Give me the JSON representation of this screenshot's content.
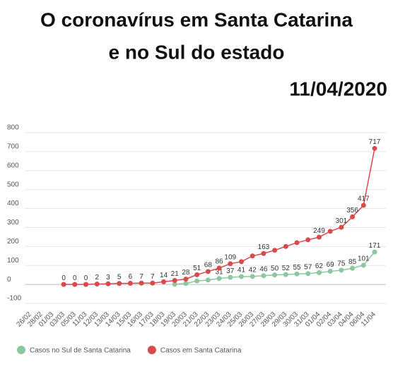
{
  "chart_data": {
    "type": "line",
    "title": "O coronavírus em Santa Catarina",
    "subtitle": "e no Sul do estado",
    "date": "11/04/2020",
    "categories": [
      "26/02",
      "28/02",
      "01/03",
      "03/03",
      "05/03",
      "11/03",
      "12/03",
      "13/03",
      "14/03",
      "15/03",
      "16/03",
      "17/03",
      "18/03",
      "19/03",
      "20/03",
      "21/03",
      "22/03",
      "23/03",
      "24/03",
      "25/03",
      "26/03",
      "27/03",
      "28/03",
      "29/03",
      "30/03",
      "31/03",
      "01/04",
      "02/04",
      "03/04",
      "04/04",
      "06/04",
      "11/04"
    ],
    "series": [
      {
        "name": "Casos no Sul de Santa Catarina",
        "color": "#8cc7a0",
        "values": [
          null,
          null,
          null,
          null,
          null,
          null,
          null,
          null,
          null,
          null,
          null,
          null,
          null,
          1,
          5,
          18,
          23,
          31,
          37,
          41,
          42,
          46,
          50,
          52,
          55,
          57,
          62,
          69,
          75,
          85,
          101,
          171
        ],
        "value_labels": [
          null,
          null,
          null,
          null,
          null,
          null,
          null,
          null,
          null,
          null,
          null,
          null,
          null,
          null,
          null,
          null,
          null,
          "31",
          "37",
          "41",
          "42",
          "46",
          "50",
          "52",
          "55",
          "57",
          "62",
          "69",
          "75",
          "85",
          "101",
          "171"
        ]
      },
      {
        "name": "Casos em Santa Catarina",
        "color": "#d94a4c",
        "values": [
          null,
          null,
          null,
          0,
          0,
          0,
          2,
          3,
          5,
          6,
          7,
          7,
          14,
          21,
          28,
          51,
          68,
          86,
          109,
          120,
          150,
          163,
          180,
          200,
          220,
          235,
          249,
          280,
          301,
          356,
          417,
          717
        ],
        "value_labels": [
          null,
          null,
          null,
          "0",
          "0",
          "0",
          "2",
          "3",
          "5",
          "6",
          "7",
          "7",
          "14",
          "21",
          "28",
          "51",
          "68",
          "86",
          "109",
          null,
          null,
          "163",
          null,
          null,
          null,
          null,
          "249",
          null,
          "301",
          "356",
          "417",
          "717"
        ]
      }
    ],
    "ylim": [
      -100,
      800
    ],
    "yticks": [
      -100,
      0,
      100,
      200,
      300,
      400,
      500,
      600,
      700,
      800
    ],
    "grid": true,
    "legend": "bottom"
  }
}
